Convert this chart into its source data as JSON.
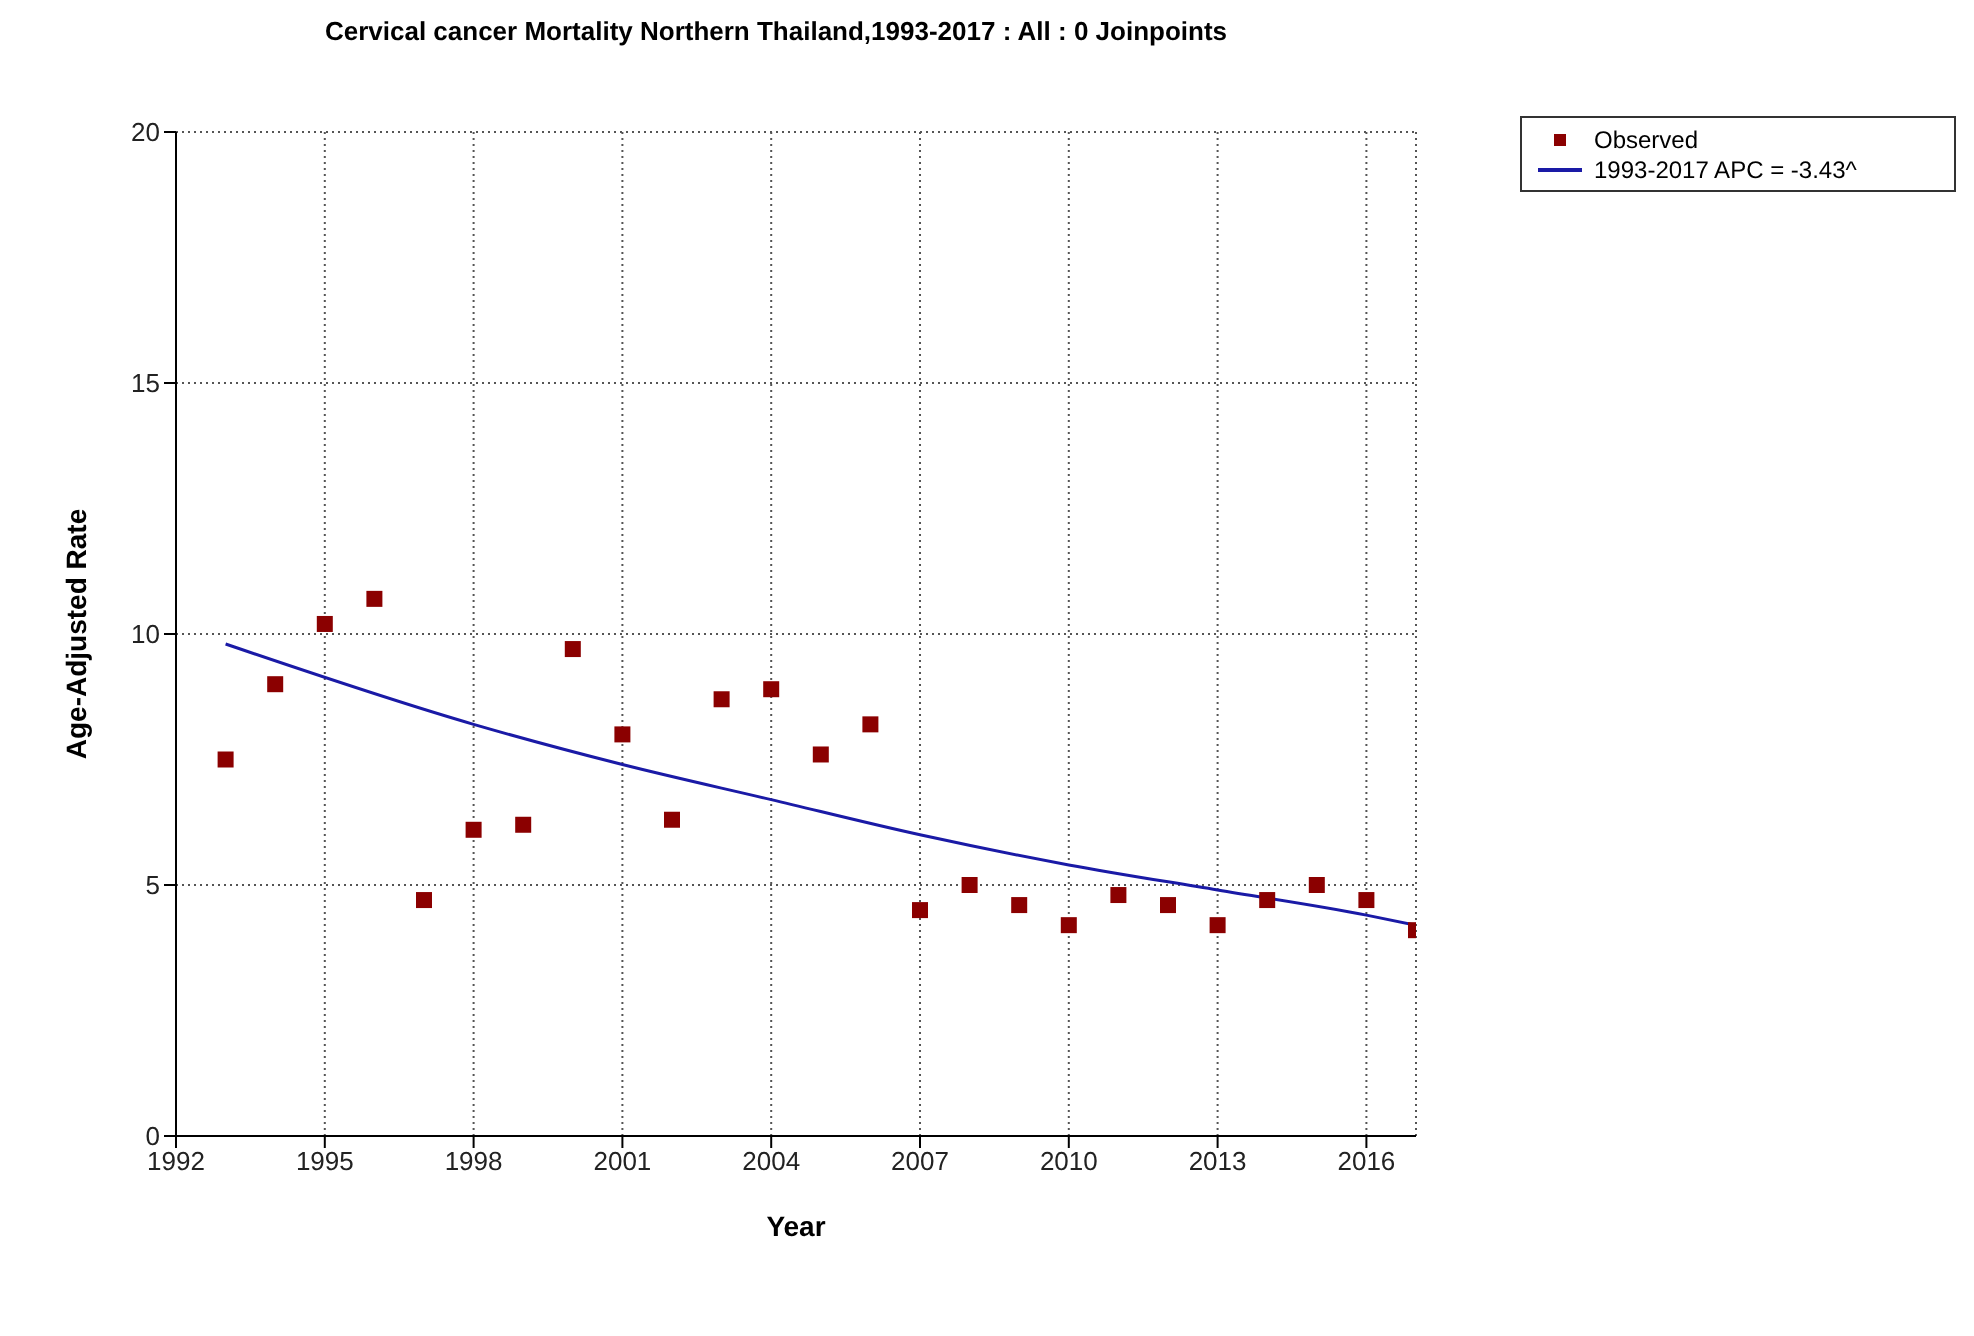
{
  "chart_data": {
    "type": "scatter",
    "title": "Cervical cancer Mortality Northern Thailand,1993-2017 : All : 0 Joinpoints",
    "xlabel": "Year",
    "ylabel": "Age-Adjusted Rate",
    "xlim": [
      1992,
      2017
    ],
    "xticks": [
      1992,
      1995,
      1998,
      2001,
      2004,
      2007,
      2010,
      2013,
      2016
    ],
    "ylim": [
      0,
      20
    ],
    "yticks": [
      0,
      5,
      10,
      15,
      20
    ],
    "grid": true,
    "legend": "top right",
    "marker": "square",
    "series": [
      {
        "name": "Observed",
        "color": "#8b0000",
        "x": [
          1993,
          1994,
          1995,
          1996,
          1997,
          1998,
          1999,
          2000,
          2001,
          2002,
          2003,
          2004,
          2005,
          2006,
          2007,
          2008,
          2009,
          2010,
          2011,
          2012,
          2013,
          2014,
          2015,
          2016,
          2017
        ],
        "values": [
          7.5,
          9.0,
          10.2,
          10.7,
          4.7,
          6.1,
          6.2,
          9.7,
          8.0,
          6.3,
          8.7,
          8.9,
          7.6,
          8.2,
          4.5,
          5.0,
          4.6,
          4.2,
          4.8,
          4.6,
          4.2,
          4.7,
          5.0,
          4.7,
          4.1
        ]
      },
      {
        "name": "1993-2017 APC  = -3.43^",
        "type": "line",
        "color": "#1a1aa6",
        "marker": "none",
        "line_style": "solid",
        "x": [
          1993,
          1998,
          2001,
          2004,
          2007,
          2010,
          2013,
          2016,
          2017
        ],
        "values": [
          9.8,
          8.2,
          7.4,
          6.7,
          6.0,
          5.4,
          4.9,
          4.4,
          4.2
        ]
      }
    ]
  }
}
